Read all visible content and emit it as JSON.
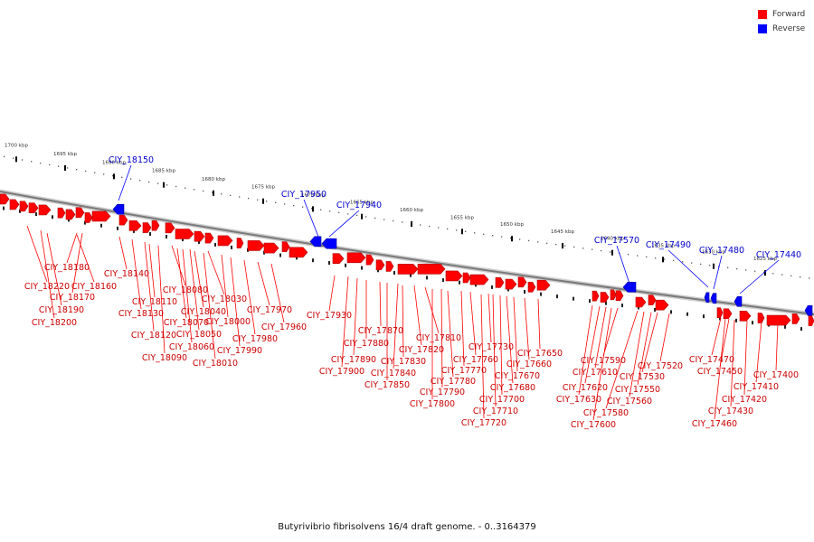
{
  "legend": {
    "forward_label": "Forward",
    "reverse_label": "Reverse",
    "forward_color": "#ff0000",
    "reverse_color": "#0000ff"
  },
  "caption": "Butyrivibrio fibrisolvens 16/4 draft genome. - 0..3164379",
  "scale_ticks": [
    "1700 kbp",
    "1695 kbp",
    "1690 kbp",
    "1685 kbp",
    "1680 kbp",
    "1675 kbp",
    "1670 kbp",
    "1665 kbp",
    "1660 kbp",
    "1655 kbp",
    "1650 kbp",
    "1645 kbp",
    "1640 kbp",
    "1635 kbp",
    "1630 kbp",
    "1625 kbp"
  ],
  "forward_labels": [
    "CIY_18220",
    "CIY_18200",
    "CIY_18190",
    "CIY_18180",
    "CIY_18170",
    "CIY_18160",
    "CIY_18140",
    "CIY_18130",
    "CIY_18120",
    "CIY_18110",
    "CIY_18090",
    "CIY_18080",
    "CIY_18070",
    "CIY_18060",
    "CIY_18050",
    "CIY_18040",
    "CIY_18030",
    "CIY_18010",
    "CIY_18000",
    "CIY_17990",
    "CIY_17980",
    "CIY_17970",
    "CIY_17960",
    "CIY_17930",
    "CIY_17900",
    "CIY_17890",
    "CIY_17880",
    "CIY_17870",
    "CIY_17850",
    "CIY_17840",
    "CIY_17830",
    "CIY_17820",
    "CIY_17810",
    "CIY_17800",
    "CIY_17790",
    "CIY_17780",
    "CIY_17770",
    "CIY_17760",
    "CIY_17730",
    "CIY_17720",
    "CIY_17710",
    "CIY_17700",
    "CIY_17680",
    "CIY_17670",
    "CIY_17660",
    "CIY_17650",
    "CIY_17630",
    "CIY_17620",
    "CIY_17610",
    "CIY_17600",
    "CIY_17590",
    "CIY_17580",
    "CIY_17560",
    "CIY_17550",
    "CIY_17530",
    "CIY_17520",
    "CIY_17470",
    "CIY_17460",
    "CIY_17450",
    "CIY_17430",
    "CIY_17420",
    "CIY_17410",
    "CIY_17400"
  ],
  "reverse_labels": [
    "CIY_18150",
    "CIY_17950",
    "CIY_17940",
    "CIY_17570",
    "CIY_17490",
    "CIY_17480",
    "CIY_17440"
  ]
}
